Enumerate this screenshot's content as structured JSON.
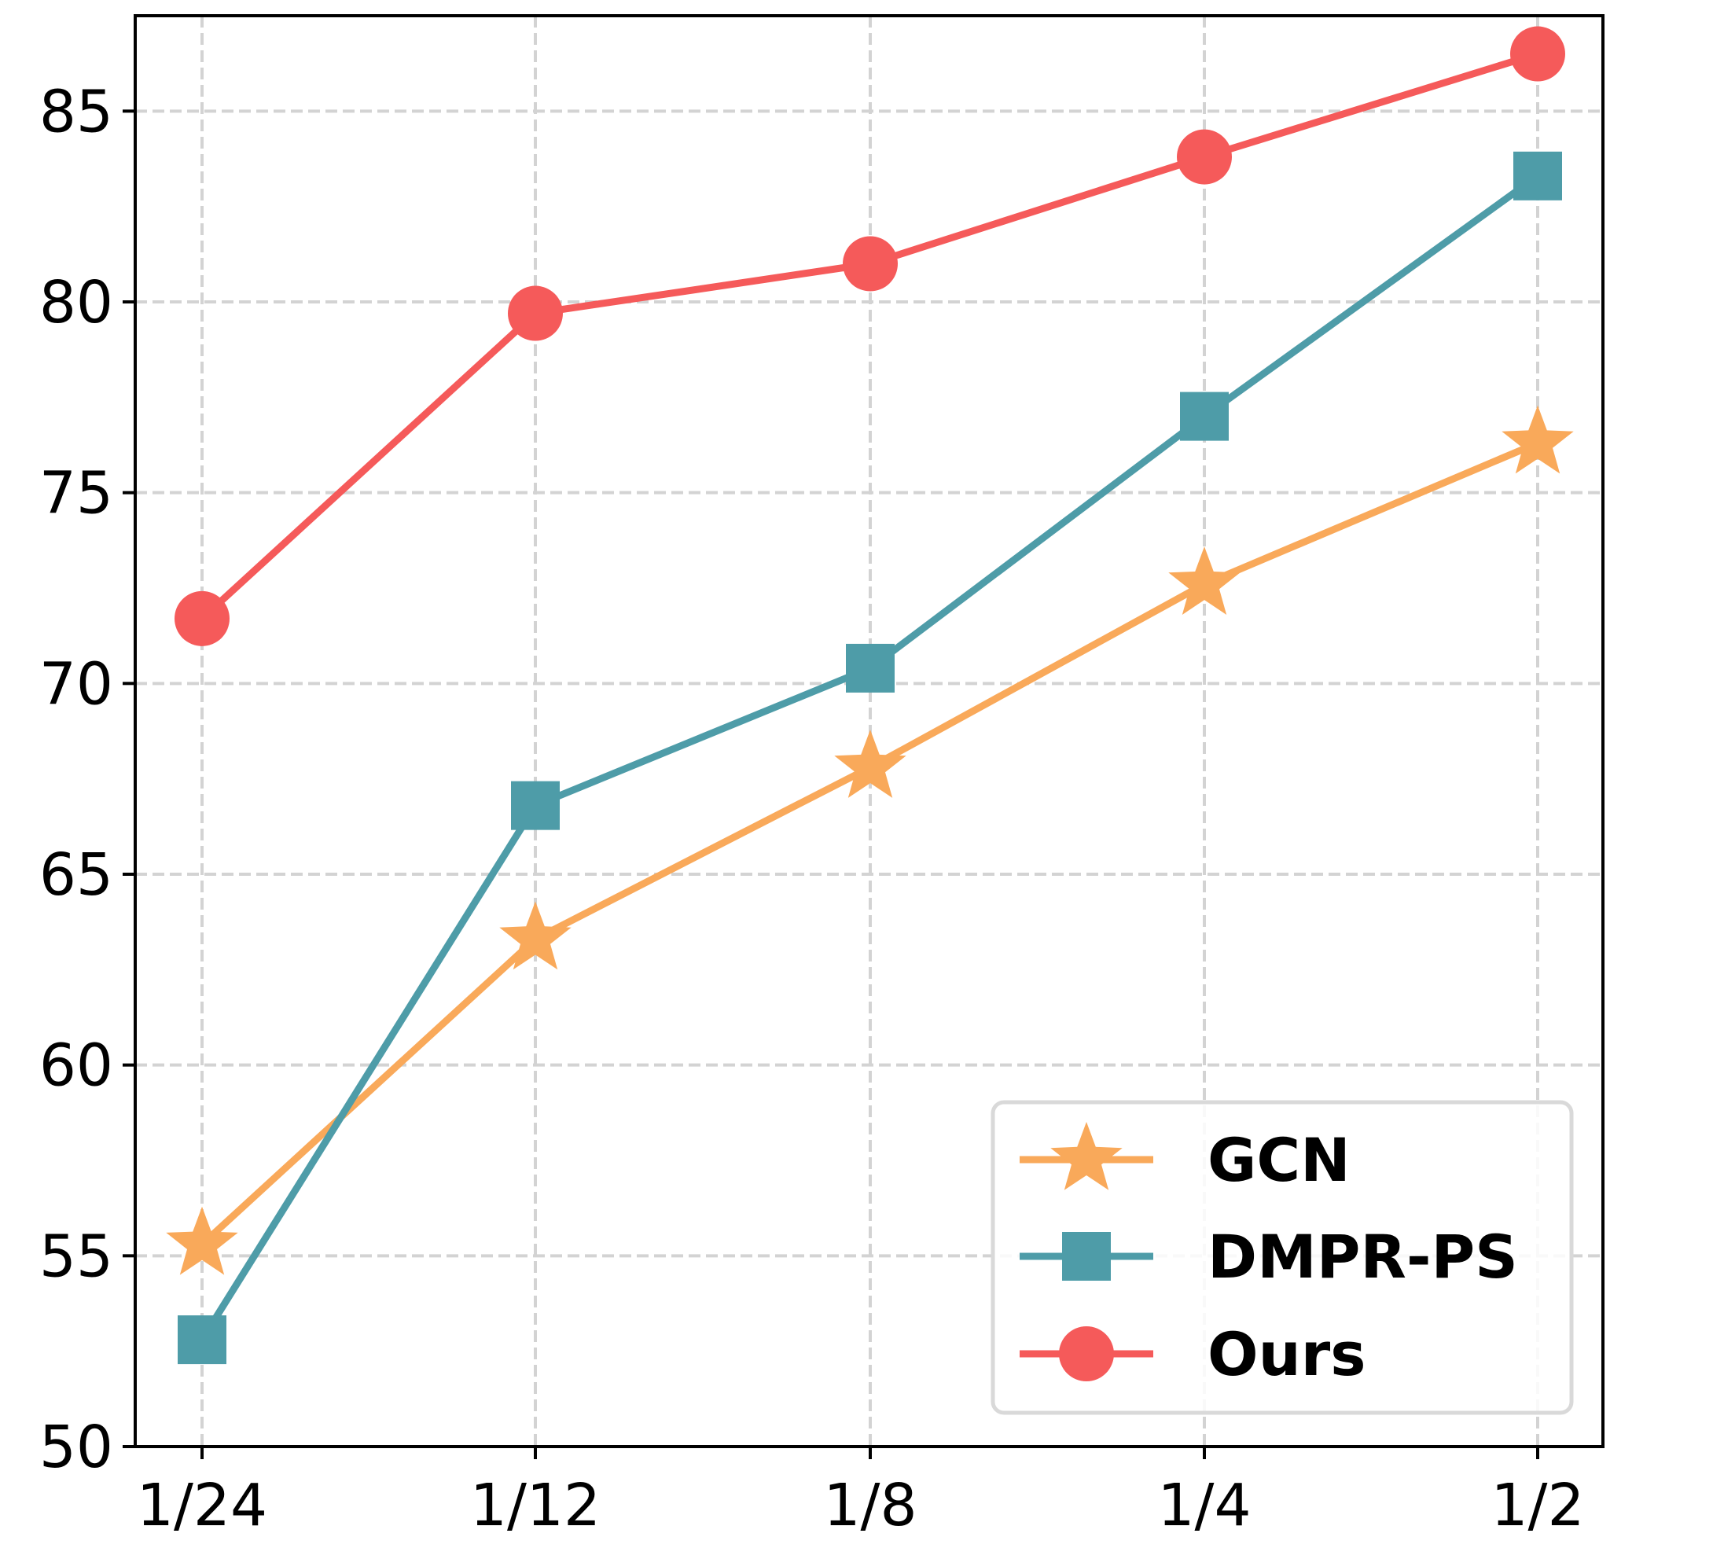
{
  "chart_data": {
    "type": "line",
    "title": "",
    "xlabel": "",
    "ylabel": "",
    "categories": [
      "1/24",
      "1/12",
      "1/8",
      "1/4",
      "1/2"
    ],
    "ylim": [
      50,
      87.5
    ],
    "yticks": [
      50,
      55,
      60,
      65,
      70,
      75,
      80,
      85
    ],
    "grid": true,
    "legend_position": "bottom-right",
    "series": [
      {
        "name": "GCN",
        "marker": "star",
        "color": "#F9A95A",
        "values": [
          55.3,
          63.3,
          67.8,
          72.6,
          76.3
        ]
      },
      {
        "name": "DMPR-PS",
        "marker": "square",
        "color": "#4E9CA8",
        "values": [
          52.8,
          66.8,
          70.4,
          77.0,
          83.3
        ]
      },
      {
        "name": "Ours",
        "marker": "circle",
        "color": "#F55A5A",
        "values": [
          71.7,
          79.7,
          81.0,
          83.8,
          86.5
        ]
      }
    ]
  }
}
